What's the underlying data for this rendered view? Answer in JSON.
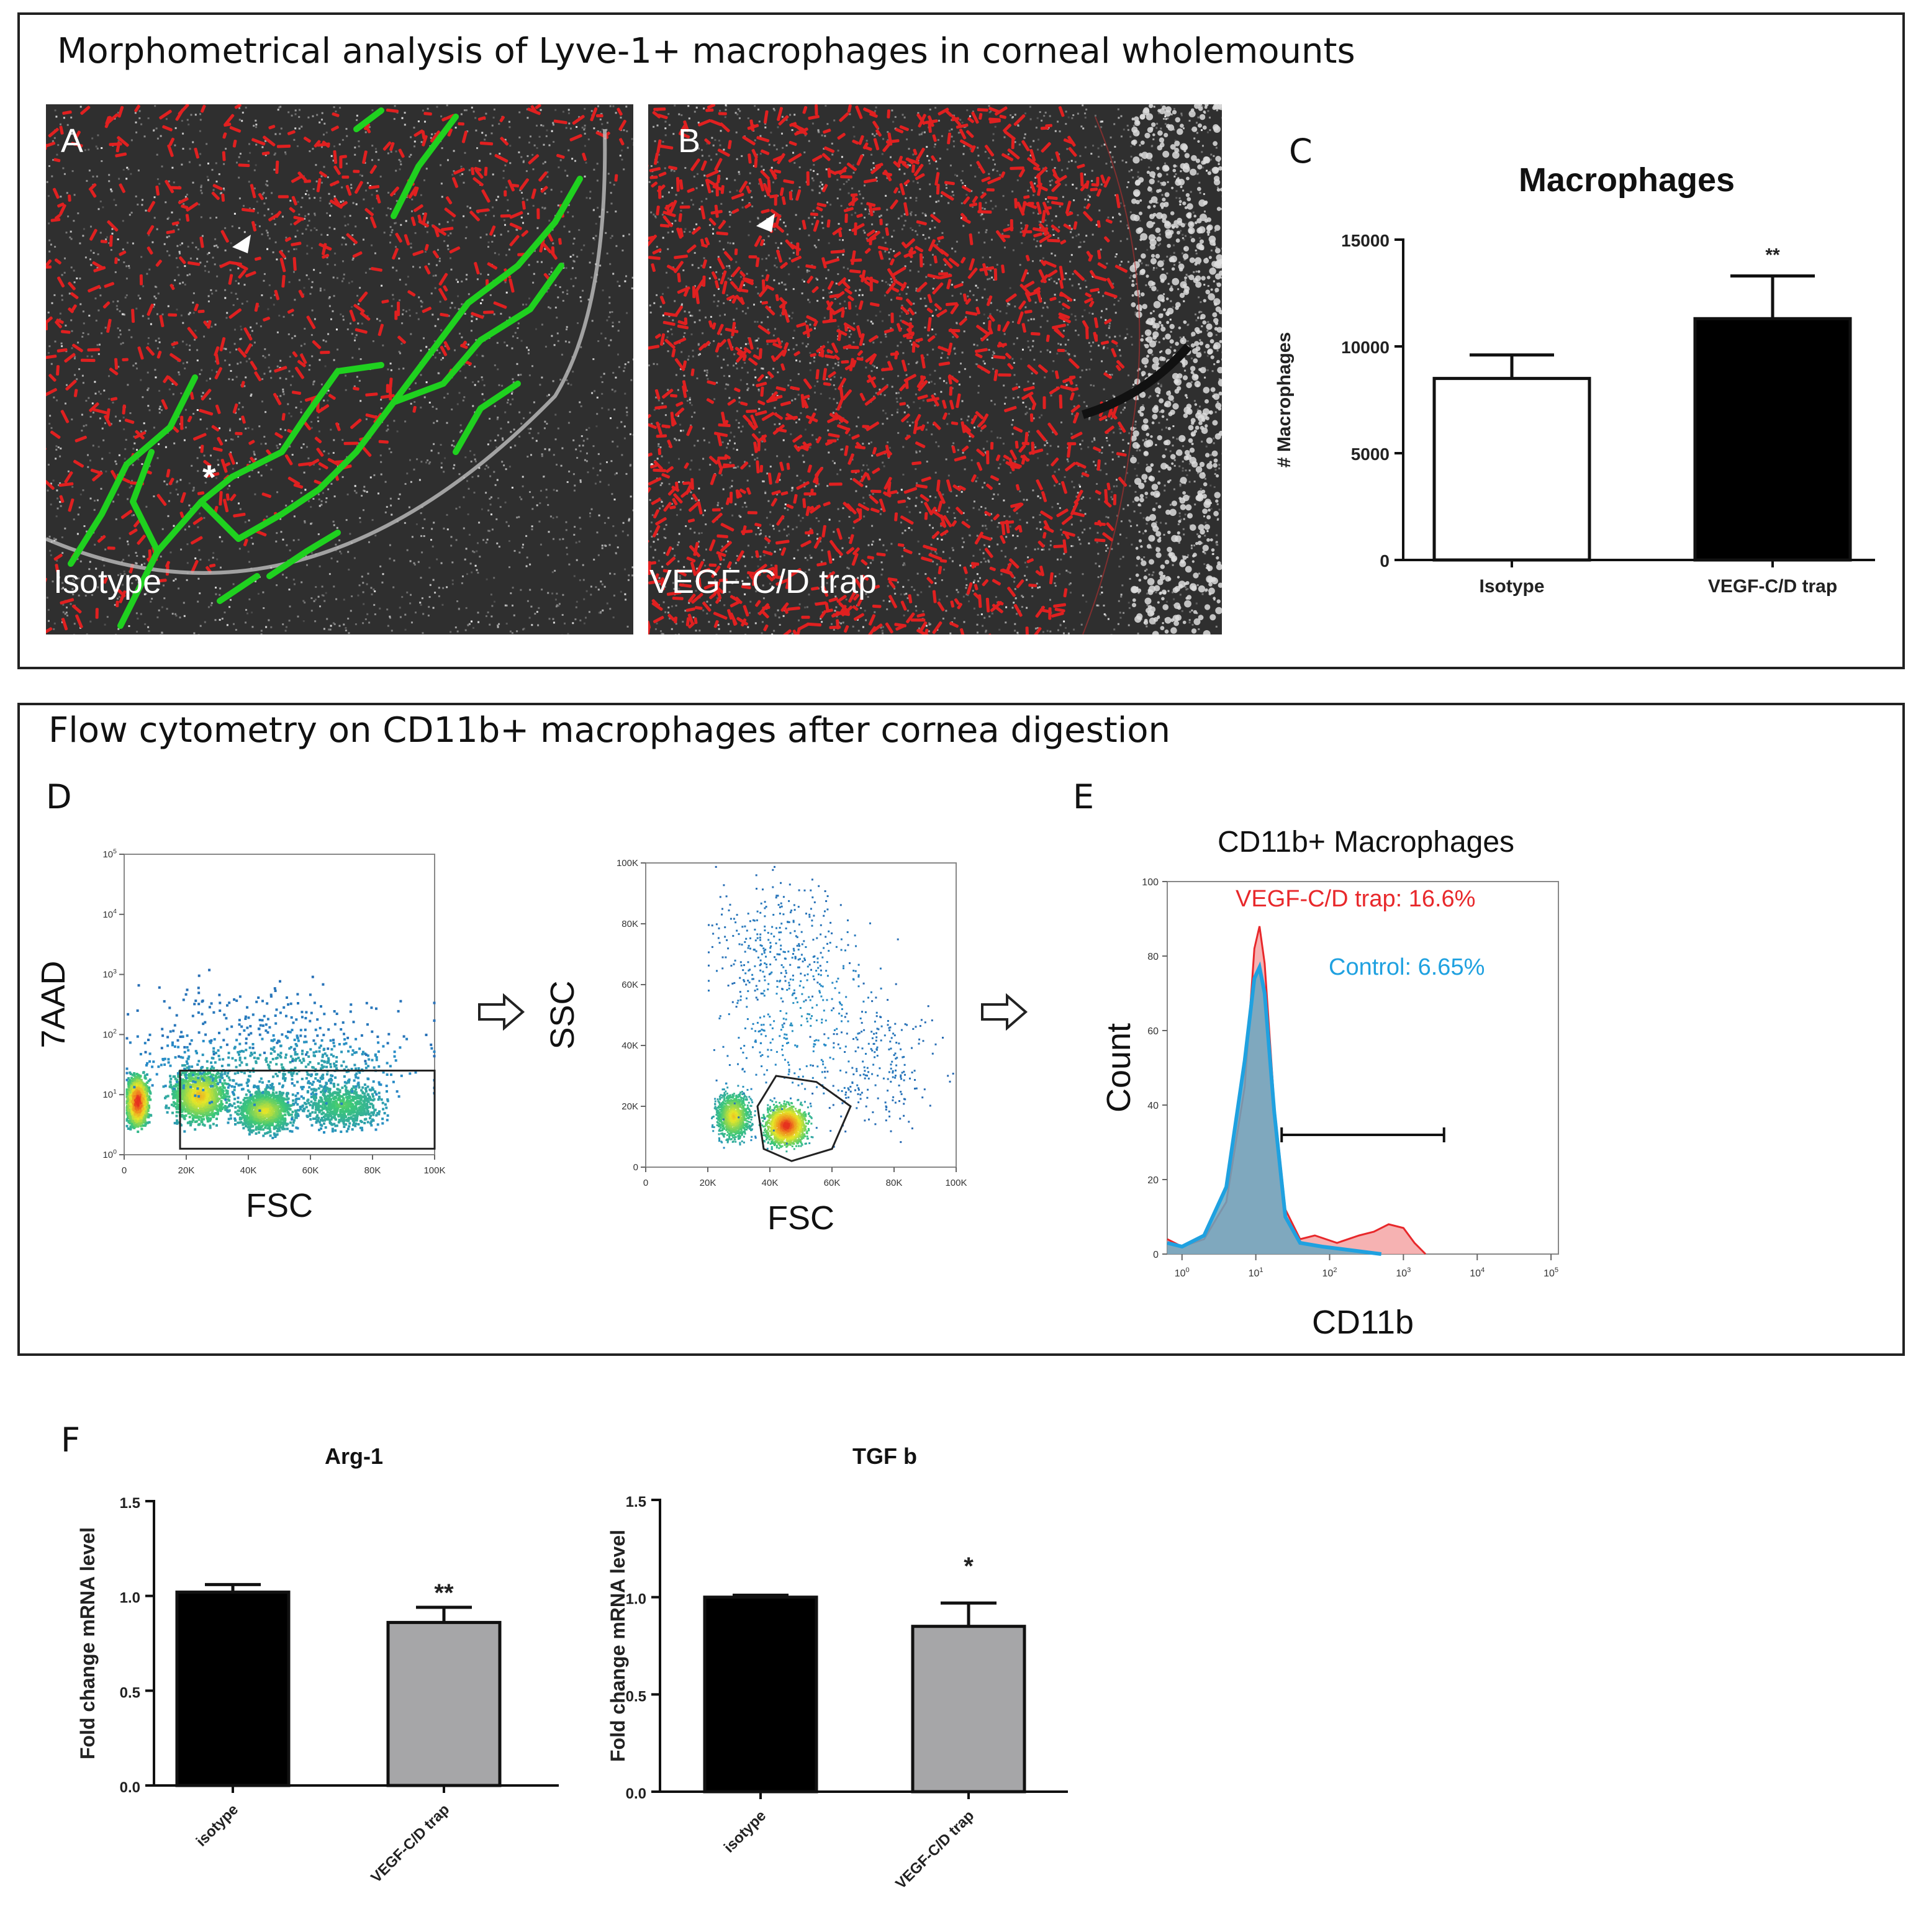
{
  "section_a": {
    "title": "Morphometrical  analysis of Lyve-1+ macrophages  in corneal wholemounts",
    "panel_a": {
      "letter": "A",
      "label": "Isotype"
    },
    "panel_b": {
      "letter": "B",
      "label": "VEGF-C/D trap"
    },
    "panel_c": {
      "letter": "C"
    }
  },
  "section_b": {
    "title": "Flow cytometry  on CD11b+ macrophages after cornea digestion",
    "panel_d": {
      "letter": "D"
    },
    "panel_e": {
      "letter": "E"
    }
  },
  "panel_f": {
    "letter": "F"
  },
  "chart_data": [
    {
      "id": "C",
      "type": "bar",
      "title": "Macrophages",
      "ylabel": "# Macrophages",
      "categories": [
        "Isotype",
        "VEGF-C/D trap"
      ],
      "values": [
        8500,
        11300
      ],
      "errors": [
        1100,
        2000
      ],
      "colors": [
        "#ffffff",
        "#000000"
      ],
      "significance": [
        "",
        "**"
      ],
      "yticks": [
        "0",
        "5000",
        "10000",
        "15000"
      ],
      "ylim": [
        0,
        15000
      ]
    },
    {
      "id": "D1",
      "type": "scatter",
      "xlabel": "FSC",
      "ylabel": "7AAD",
      "xticks": [
        "0",
        "20K",
        "40K",
        "60K",
        "80K",
        "100K"
      ],
      "yticks": [
        "10^0",
        "10^1",
        "10^2",
        "10^3",
        "10^4",
        "10^5"
      ]
    },
    {
      "id": "D2",
      "type": "scatter",
      "xlabel": "FSC",
      "ylabel": "SSC",
      "xticks": [
        "0",
        "20K",
        "40K",
        "60K",
        "80K",
        "100K"
      ],
      "yticks": [
        "0",
        "20K",
        "40K",
        "60K",
        "80K",
        "100K"
      ]
    },
    {
      "id": "E",
      "type": "area",
      "title": "CD11b+ Macrophages",
      "xlabel": "CD11b",
      "ylabel": "Count",
      "xticks": [
        "10^0",
        "10^1",
        "10^2",
        "10^3",
        "10^4",
        "10^5"
      ],
      "yticks": [
        "0",
        "20",
        "40",
        "60",
        "80",
        "100"
      ],
      "ylim": [
        0,
        100
      ],
      "xlim_log10": [
        -0.2,
        5.1
      ],
      "series": [
        {
          "name": "VEGF-C/D trap",
          "label": "VEGF-C/D trap: 16.6%",
          "color": "#e8282b",
          "points": [
            [
              -0.2,
              4
            ],
            [
              0,
              2
            ],
            [
              0.3,
              4
            ],
            [
              0.6,
              14
            ],
            [
              0.85,
              45
            ],
            [
              0.98,
              82
            ],
            [
              1.05,
              88
            ],
            [
              1.12,
              78
            ],
            [
              1.25,
              40
            ],
            [
              1.4,
              12
            ],
            [
              1.6,
              4
            ],
            [
              1.8,
              5
            ],
            [
              2.1,
              3
            ],
            [
              2.4,
              5
            ],
            [
              2.6,
              6
            ],
            [
              2.8,
              8
            ],
            [
              3.0,
              7
            ],
            [
              3.15,
              3
            ],
            [
              3.3,
              0
            ]
          ]
        },
        {
          "name": "Control",
          "label": "Control: 6.65%",
          "color": "#1fa1e0",
          "points": [
            [
              -0.2,
              3
            ],
            [
              0,
              2
            ],
            [
              0.3,
              5
            ],
            [
              0.6,
              18
            ],
            [
              0.85,
              52
            ],
            [
              0.98,
              74
            ],
            [
              1.05,
              77
            ],
            [
              1.12,
              70
            ],
            [
              1.25,
              38
            ],
            [
              1.4,
              10
            ],
            [
              1.6,
              3
            ],
            [
              1.9,
              2
            ],
            [
              2.3,
              1
            ],
            [
              2.7,
              0
            ]
          ]
        }
      ],
      "gate_log10": [
        1.35,
        3.55
      ],
      "gate_y": 32
    },
    {
      "id": "F1",
      "type": "bar",
      "title": "Arg-1",
      "ylabel": "Fold change mRNA level",
      "categories": [
        "isotype",
        "VEGF-C/D trap"
      ],
      "values": [
        1.02,
        0.86
      ],
      "errors": [
        0.04,
        0.08
      ],
      "colors": [
        "#000000",
        "#a6a6a8"
      ],
      "significance": [
        "",
        "**"
      ],
      "yticks": [
        "0.0",
        "0.5",
        "1.0",
        "1.5"
      ],
      "ylim": [
        0,
        1.5
      ]
    },
    {
      "id": "F2",
      "type": "bar",
      "title": "TGF b",
      "ylabel": "Fold change mRNA level",
      "categories": [
        "isotype",
        "VEGF-C/D trap"
      ],
      "values": [
        1.0,
        0.85
      ],
      "errors": [
        0.01,
        0.12
      ],
      "colors": [
        "#000000",
        "#a6a6a8"
      ],
      "significance": [
        "",
        "*"
      ],
      "yticks": [
        "0.0",
        "0.5",
        "1.0",
        "1.5"
      ],
      "ylim": [
        0,
        1.5
      ]
    }
  ]
}
